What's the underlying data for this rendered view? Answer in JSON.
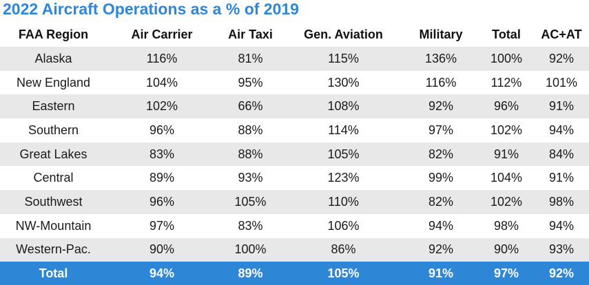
{
  "chart_data": {
    "type": "table",
    "title": "2022 Aircraft Operations as a % of 2019",
    "columns": [
      "FAA Region",
      "Air Carrier",
      "Air Taxi",
      "Gen. Aviation",
      "Military",
      "Total",
      "AC+AT"
    ],
    "rows": [
      [
        "Alaska",
        "116%",
        "81%",
        "115%",
        "136%",
        "100%",
        "92%"
      ],
      [
        "New England",
        "104%",
        "95%",
        "130%",
        "116%",
        "112%",
        "101%"
      ],
      [
        "Eastern",
        "102%",
        "66%",
        "108%",
        "92%",
        "96%",
        "91%"
      ],
      [
        "Southern",
        "96%",
        "88%",
        "114%",
        "97%",
        "102%",
        "94%"
      ],
      [
        "Great Lakes",
        "83%",
        "88%",
        "105%",
        "82%",
        "91%",
        "84%"
      ],
      [
        "Central",
        "89%",
        "93%",
        "123%",
        "99%",
        "104%",
        "91%"
      ],
      [
        "Southwest",
        "96%",
        "105%",
        "110%",
        "82%",
        "102%",
        "98%"
      ],
      [
        "NW-Mountain",
        "97%",
        "83%",
        "106%",
        "94%",
        "98%",
        "94%"
      ],
      [
        "Western-Pac.",
        "90%",
        "100%",
        "86%",
        "92%",
        "90%",
        "93%"
      ]
    ],
    "total_row": [
      "Total",
      "94%",
      "89%",
      "105%",
      "91%",
      "97%",
      "92%"
    ]
  },
  "colors": {
    "accent": "#2e86d6",
    "stripe": "#e8e8e8"
  }
}
